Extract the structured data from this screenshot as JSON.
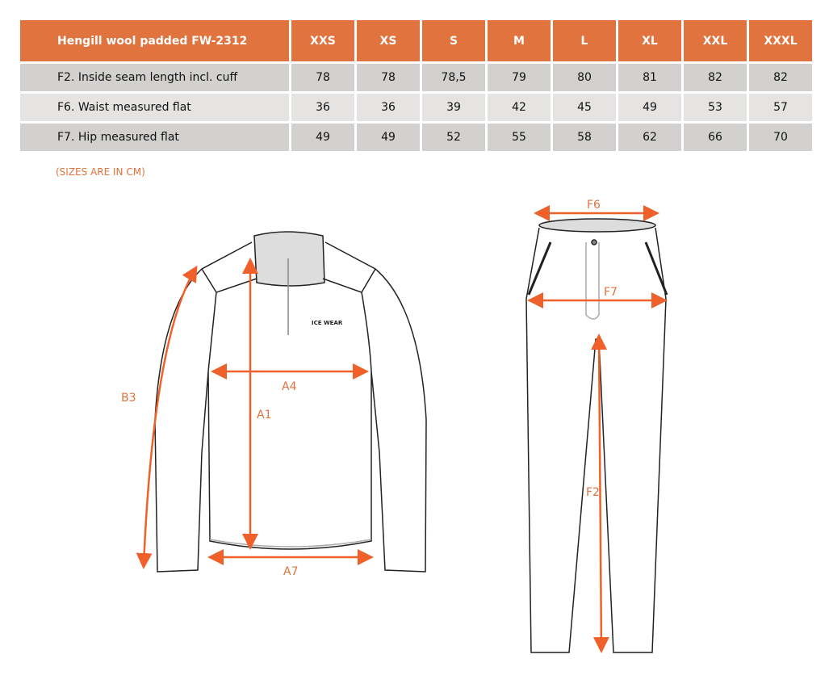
{
  "table": {
    "title": "Hengill wool padded FW-2312",
    "sizes": [
      "XXS",
      "XS",
      "S",
      "M",
      "L",
      "XL",
      "XXL",
      "XXXL"
    ],
    "rows": [
      {
        "label": "F2. Inside seam length incl. cuff",
        "values": [
          "78",
          "78",
          "78,5",
          "79",
          "80",
          "81",
          "82",
          "82"
        ]
      },
      {
        "label": "F6. Waist measured flat",
        "values": [
          "36",
          "36",
          "39",
          "42",
          "45",
          "49",
          "53",
          "57"
        ]
      },
      {
        "label": "F7. Hip measured flat",
        "values": [
          "49",
          "49",
          "52",
          "55",
          "58",
          "62",
          "66",
          "70"
        ]
      }
    ]
  },
  "note": "(SIZES ARE IN CM)",
  "diagram": {
    "top_labels": [
      "B3",
      "A1",
      "A4",
      "A7"
    ],
    "pants_labels": [
      "F6",
      "F7",
      "F2"
    ],
    "logo_text": "ICE WEAR",
    "accent_color": "#e0733e"
  }
}
